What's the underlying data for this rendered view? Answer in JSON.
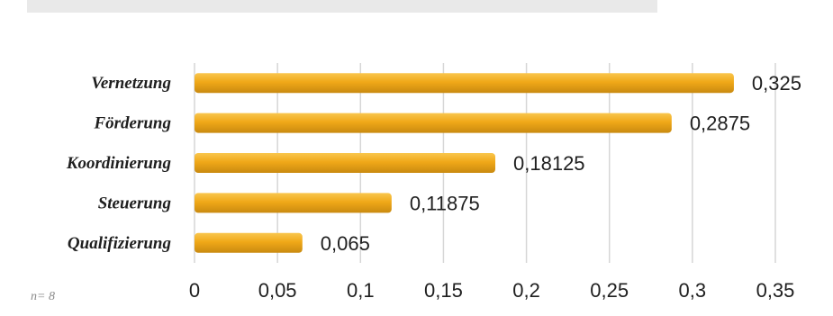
{
  "chart_data": {
    "type": "bar",
    "orientation": "horizontal",
    "title": "",
    "xlabel": "",
    "ylabel": "",
    "categories": [
      "Vernetzung",
      "Förderung",
      "Koordinierung",
      "Steuerung",
      "Qualifizierung"
    ],
    "values": [
      0.325,
      0.2875,
      0.18125,
      0.11875,
      0.065
    ],
    "value_labels": [
      "0,325",
      "0,2875",
      "0,18125",
      "0,11875",
      "0,065"
    ],
    "xlim": [
      0,
      0.35
    ],
    "ticks": [
      0,
      0.05,
      0.1,
      0.15,
      0.2,
      0.25,
      0.3,
      0.35
    ],
    "tick_labels": [
      "0",
      "0,05",
      "0,1",
      "0,15",
      "0,2",
      "0,25",
      "0,3",
      "0,35"
    ],
    "grid": "vertical",
    "legend": "none",
    "bar_color": "#f0a818",
    "bar_color_light": "#f9c64e",
    "bar_color_dark": "#c98a10",
    "grid_color": "#d6d6d6",
    "note": "n= 8"
  }
}
